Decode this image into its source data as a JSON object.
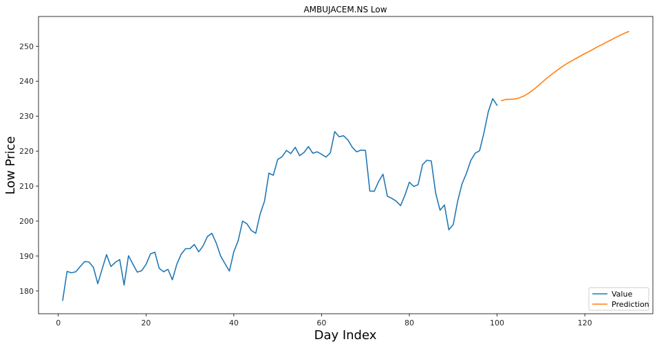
{
  "chart_data": {
    "type": "line",
    "title": "AMBUJACEM.NS Low",
    "xlabel": "Day Index",
    "ylabel": "Low Price",
    "xlim": [
      -4.5,
      135.5
    ],
    "ylim": [
      173.5,
      258.5
    ],
    "xticks": [
      0,
      20,
      40,
      60,
      80,
      100,
      120
    ],
    "yticks": [
      180,
      190,
      200,
      210,
      220,
      230,
      240,
      250
    ],
    "grid": false,
    "legend_position": "bottom-right",
    "series": [
      {
        "name": "Value",
        "color": "#1f77b4",
        "x": [
          1,
          2,
          3,
          4,
          5,
          6,
          7,
          8,
          9,
          10,
          11,
          12,
          13,
          14,
          15,
          16,
          17,
          18,
          19,
          20,
          21,
          22,
          23,
          24,
          25,
          26,
          27,
          28,
          29,
          30,
          31,
          32,
          33,
          34,
          35,
          36,
          37,
          38,
          39,
          40,
          41,
          42,
          43,
          44,
          45,
          46,
          47,
          48,
          49,
          50,
          51,
          52,
          53,
          54,
          55,
          56,
          57,
          58,
          59,
          60,
          61,
          62,
          63,
          64,
          65,
          66,
          67,
          68,
          69,
          70,
          71,
          72,
          73,
          74,
          75,
          76,
          77,
          78,
          79,
          80,
          81,
          82,
          83,
          84,
          85,
          86,
          87,
          88,
          89,
          90,
          91,
          92,
          93,
          94,
          95,
          96,
          97,
          98,
          99,
          100
        ],
        "values": [
          177.3,
          185.6,
          185.2,
          185.5,
          187.0,
          188.4,
          188.3,
          186.8,
          182.1,
          186.3,
          190.4,
          187.0,
          188.2,
          189.0,
          181.7,
          190.1,
          187.7,
          185.4,
          185.8,
          187.6,
          190.6,
          191.1,
          186.5,
          185.5,
          186.2,
          183.2,
          187.6,
          190.5,
          192.1,
          192.1,
          193.3,
          191.2,
          192.9,
          195.6,
          196.5,
          193.7,
          190.0,
          187.8,
          185.7,
          191.2,
          194.4,
          200.0,
          199.2,
          197.3,
          196.5,
          202.0,
          205.7,
          213.7,
          213.1,
          217.6,
          218.4,
          220.2,
          219.3,
          221.1,
          218.7,
          219.6,
          221.3,
          219.4,
          219.8,
          219.1,
          218.3,
          219.5,
          225.6,
          224.1,
          224.4,
          223.2,
          221.1,
          219.8,
          220.3,
          220.2,
          208.6,
          208.5,
          211.3,
          213.4,
          207.1,
          206.5,
          205.7,
          204.4,
          207.4,
          211.1,
          209.9,
          210.4,
          216.1,
          217.4,
          217.2,
          208.0,
          203.1,
          204.6,
          197.5,
          199.0,
          205.6,
          210.6,
          213.6,
          217.3,
          219.4,
          220.1,
          225.2,
          231.3,
          235.0,
          233.1
        ]
      },
      {
        "name": "Prediction",
        "color": "#ff7f0e",
        "x": [
          101,
          102,
          103,
          104,
          105,
          106,
          107,
          108,
          109,
          110,
          111,
          112,
          113,
          114,
          115,
          116,
          117,
          118,
          119,
          120,
          121,
          122,
          123,
          124,
          125,
          126,
          127,
          128,
          129,
          130
        ],
        "values": [
          234.4,
          234.8,
          234.8,
          234.9,
          235.2,
          235.7,
          236.4,
          237.3,
          238.3,
          239.4,
          240.5,
          241.5,
          242.5,
          243.4,
          244.3,
          245.1,
          245.8,
          246.5,
          247.2,
          247.9,
          248.5,
          249.2,
          249.9,
          250.5,
          251.2,
          251.8,
          252.5,
          253.1,
          253.7,
          254.2
        ]
      }
    ]
  }
}
